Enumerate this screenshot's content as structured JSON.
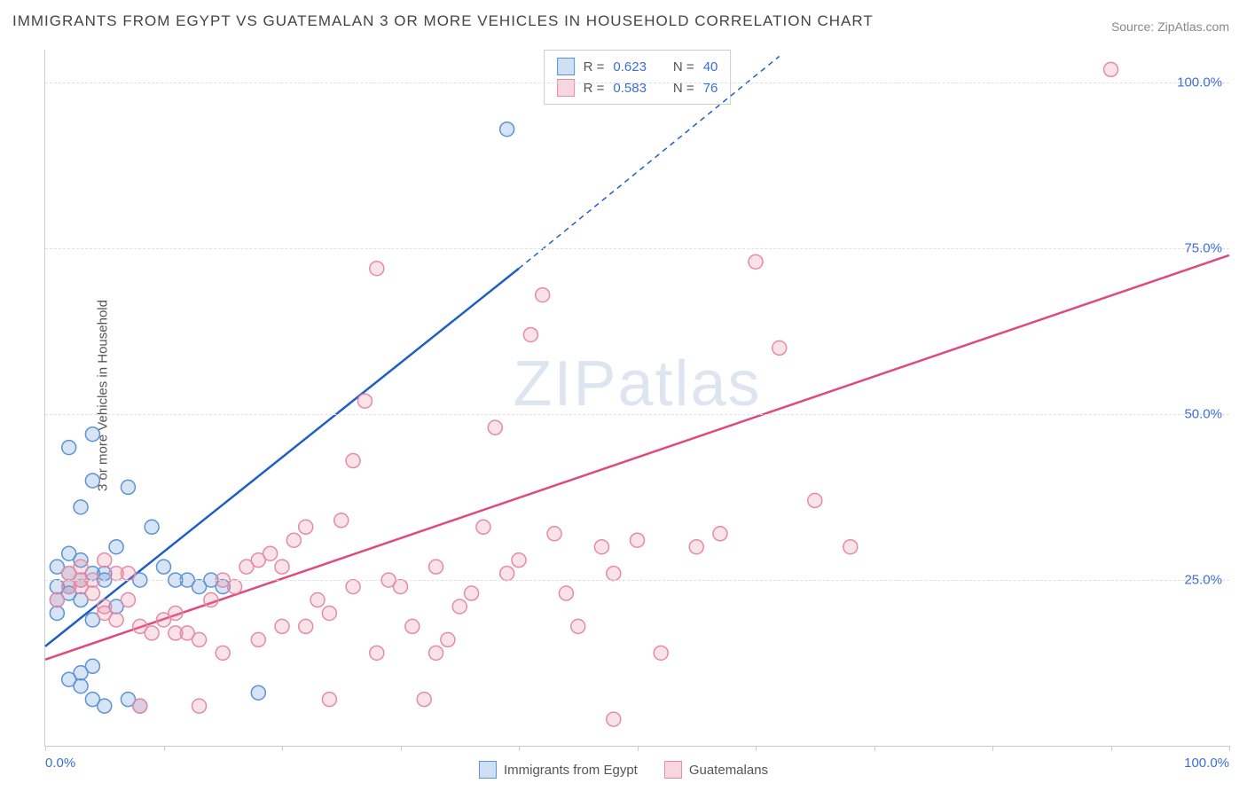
{
  "title": "IMMIGRANTS FROM EGYPT VS GUATEMALAN 3 OR MORE VEHICLES IN HOUSEHOLD CORRELATION CHART",
  "source": "Source: ZipAtlas.com",
  "ylabel": "3 or more Vehicles in Household",
  "watermark": "ZIPatlas",
  "chart": {
    "type": "scatter",
    "xlim": [
      0,
      100
    ],
    "ylim": [
      0,
      105
    ],
    "x_axis_labels": {
      "left": "0.0%",
      "right": "100.0%"
    },
    "y_ticks": [
      {
        "v": 25,
        "label": "25.0%"
      },
      {
        "v": 50,
        "label": "50.0%"
      },
      {
        "v": 75,
        "label": "75.0%"
      },
      {
        "v": 100,
        "label": "100.0%"
      }
    ],
    "x_tick_positions": [
      0,
      10,
      20,
      30,
      40,
      50,
      60,
      70,
      80,
      90,
      100
    ],
    "background_color": "#ffffff",
    "grid_color": "#e0e0e0",
    "marker_radius": 8,
    "marker_stroke_width": 1.5,
    "marker_fill_opacity": 0.25,
    "series": [
      {
        "name": "Immigrants from Egypt",
        "color": "#5a93d6",
        "line_color": "#1f5fc4",
        "r": 0.623,
        "n": 40,
        "regression": {
          "x1": 0,
          "y1": 15,
          "x2": 40,
          "y2": 72,
          "x2_dash": 62,
          "y2_dash": 104
        },
        "points": [
          [
            1,
            20
          ],
          [
            1,
            22
          ],
          [
            2,
            24
          ],
          [
            2,
            26
          ],
          [
            3,
            28
          ],
          [
            1,
            27
          ],
          [
            2,
            23
          ],
          [
            3,
            25
          ],
          [
            4,
            26
          ],
          [
            2,
            29
          ],
          [
            3,
            36
          ],
          [
            4,
            40
          ],
          [
            2,
            45
          ],
          [
            4,
            47
          ],
          [
            1,
            24
          ],
          [
            6,
            30
          ],
          [
            5,
            26
          ],
          [
            3,
            22
          ],
          [
            5,
            25
          ],
          [
            7,
            39
          ],
          [
            8,
            25
          ],
          [
            9,
            33
          ],
          [
            10,
            27
          ],
          [
            11,
            25
          ],
          [
            12,
            25
          ],
          [
            13,
            24
          ],
          [
            14,
            25
          ],
          [
            15,
            24
          ],
          [
            3,
            9
          ],
          [
            4,
            7
          ],
          [
            5,
            6
          ],
          [
            7,
            7
          ],
          [
            8,
            6
          ],
          [
            2,
            10
          ],
          [
            3,
            11
          ],
          [
            4,
            12
          ],
          [
            18,
            8
          ],
          [
            39,
            93
          ],
          [
            6,
            21
          ],
          [
            4,
            19
          ]
        ]
      },
      {
        "name": "Guatemalans",
        "color": "#e68aa5",
        "line_color": "#e04a7a",
        "r": 0.583,
        "n": 76,
        "regression": {
          "x1": 0,
          "y1": 13,
          "x2": 100,
          "y2": 74
        },
        "points": [
          [
            1,
            22
          ],
          [
            2,
            24
          ],
          [
            3,
            25
          ],
          [
            2,
            26
          ],
          [
            4,
            23
          ],
          [
            3,
            27
          ],
          [
            5,
            21
          ],
          [
            4,
            25
          ],
          [
            6,
            26
          ],
          [
            5,
            20
          ],
          [
            7,
            22
          ],
          [
            6,
            19
          ],
          [
            8,
            18
          ],
          [
            9,
            17
          ],
          [
            10,
            19
          ],
          [
            11,
            20
          ],
          [
            12,
            17
          ],
          [
            13,
            16
          ],
          [
            14,
            22
          ],
          [
            15,
            25
          ],
          [
            16,
            24
          ],
          [
            17,
            27
          ],
          [
            18,
            28
          ],
          [
            19,
            29
          ],
          [
            20,
            27
          ],
          [
            21,
            31
          ],
          [
            22,
            33
          ],
          [
            23,
            22
          ],
          [
            24,
            20
          ],
          [
            25,
            34
          ],
          [
            26,
            43
          ],
          [
            27,
            52
          ],
          [
            28,
            72
          ],
          [
            29,
            25
          ],
          [
            30,
            24
          ],
          [
            31,
            18
          ],
          [
            32,
            7
          ],
          [
            33,
            14
          ],
          [
            34,
            16
          ],
          [
            35,
            21
          ],
          [
            36,
            23
          ],
          [
            37,
            33
          ],
          [
            38,
            48
          ],
          [
            39,
            26
          ],
          [
            40,
            28
          ],
          [
            41,
            62
          ],
          [
            42,
            68
          ],
          [
            43,
            32
          ],
          [
            44,
            23
          ],
          [
            45,
            18
          ],
          [
            48,
            26
          ],
          [
            50,
            31
          ],
          [
            52,
            14
          ],
          [
            55,
            30
          ],
          [
            57,
            32
          ],
          [
            60,
            73
          ],
          [
            62,
            60
          ],
          [
            65,
            37
          ],
          [
            68,
            30
          ],
          [
            90,
            102
          ],
          [
            8,
            6
          ],
          [
            11,
            17
          ],
          [
            13,
            6
          ],
          [
            24,
            7
          ],
          [
            47,
            30
          ],
          [
            28,
            14
          ],
          [
            20,
            18
          ],
          [
            18,
            16
          ],
          [
            22,
            18
          ],
          [
            26,
            24
          ],
          [
            15,
            14
          ],
          [
            7,
            26
          ],
          [
            5,
            28
          ],
          [
            3,
            24
          ],
          [
            48,
            4
          ],
          [
            33,
            27
          ]
        ]
      }
    ]
  },
  "bottom_legend": [
    {
      "label": "Immigrants from Egypt",
      "fill": "#cfe0f5",
      "stroke": "#5a93d6"
    },
    {
      "label": "Guatemalans",
      "fill": "#f8d6e0",
      "stroke": "#e68aa5"
    }
  ],
  "stat_legend": [
    {
      "fill": "#cfe0f5",
      "stroke": "#5a93d6",
      "r": "0.623",
      "n": "40"
    },
    {
      "fill": "#f8d6e0",
      "stroke": "#e68aa5",
      "r": "0.583",
      "n": "76"
    }
  ]
}
